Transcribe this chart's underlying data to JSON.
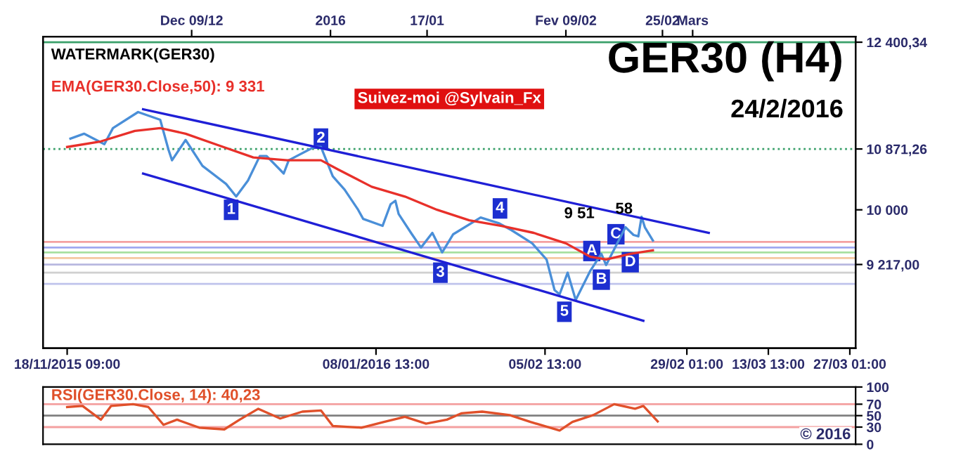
{
  "chart_data": [
    {
      "type": "line",
      "title": "GER30 (H4)",
      "subtitle": "24/2/2016",
      "xlim": [
        "2015-11-14T09:00",
        "2016-03-28T00:00"
      ],
      "ylim": [
        8020,
        12480
      ],
      "xticks": [
        {
          "value": "2015-11-18T09:00",
          "label": "18/11/2015 09:00"
        },
        {
          "value": "2016-01-08T13:00",
          "label": "08/01/2016 13:00"
        },
        {
          "value": "2016-02-05T13:00",
          "label": "05/02 13:00"
        },
        {
          "value": "2016-02-29T01:00",
          "label": "29/02 01:00"
        },
        {
          "value": "2016-03-13T13:00",
          "label": "13/03 13:00"
        },
        {
          "value": "2016-03-27T01:00",
          "label": "27/03 01:00"
        }
      ],
      "x2lim": [
        "2015-11-14T09:00",
        "2016-03-28T00:00"
      ],
      "x2ticks": [
        {
          "value": "2015-12-09",
          "label": "Dec 09/12"
        },
        {
          "value": "2016-01-01",
          "label": "2016"
        },
        {
          "value": "2016-01-17",
          "label": "17/01"
        },
        {
          "value": "2016-02-09",
          "label": "Fev 09/02"
        },
        {
          "value": "2016-02-25",
          "label": "25/02"
        },
        {
          "value": "2016-03-01",
          "label": "Mars"
        }
      ],
      "yticks": [
        {
          "value": 12400.34,
          "label": "12 400,34"
        },
        {
          "value": 10871.26,
          "label": "10 871,26"
        },
        {
          "value": 10000,
          "label": "10 000"
        },
        {
          "value": 9217,
          "label": "9 217,00"
        }
      ],
      "grid": false,
      "legend": false,
      "series": [
        {
          "color": "#4a8fd8",
          "x": [
            "2015-11-18T22:00",
            "2015-11-21T04:00",
            "2015-11-24T13:00",
            "2015-11-25T23:00",
            "2015-11-30T03:00",
            "2015-12-03T19:00",
            "2015-12-05T04:00",
            "2015-12-05T18:00",
            "2015-12-08T00:00",
            "2015-12-10T19:00",
            "2015-12-14T17:00",
            "2015-12-16T09:00",
            "2015-12-18T08:00",
            "2015-12-20T07:00",
            "2015-12-21T10:00",
            "2015-12-24T06:00",
            "2015-12-25T02:00",
            "2015-12-29T07:00",
            "2015-12-30T10:00",
            "2016-01-01T09:00",
            "2016-01-03T08:00",
            "2016-01-05T14:00",
            "2016-01-06T10:00",
            "2016-01-09T15:00",
            "2016-01-10T23:00",
            "2016-01-11T18:00",
            "2016-01-12T07:00",
            "2016-01-14T10:00",
            "2016-01-16T00:00",
            "2016-01-17T21:00",
            "2016-01-19T12:00",
            "2016-01-21T08:00",
            "2016-01-25T21:00",
            "2016-01-28T20:00",
            "2016-01-30T23:00",
            "2016-02-03T10:00",
            "2016-02-05T19:00",
            "2016-02-07T03:00",
            "2016-02-07T23:00",
            "2016-02-09T07:00",
            "2016-02-10T15:00",
            "2016-02-13T00:00",
            "2016-02-14T21:00",
            "2016-02-15T16:00",
            "2016-02-18T21:00",
            "2016-02-20T05:00",
            "2016-02-21T00:00",
            "2016-02-21T13:00",
            "2016-02-22T02:00",
            "2016-02-23T10:00"
          ],
          "values": [
            11020,
            11090,
            10940,
            11170,
            11400,
            11290,
            10860,
            10710,
            11000,
            10630,
            10370,
            10190,
            10420,
            10770,
            10770,
            10520,
            10710,
            10900,
            10900,
            10480,
            10290,
            10000,
            9870,
            9770,
            10080,
            10130,
            9940,
            9660,
            9460,
            9670,
            9390,
            9650,
            9890,
            9810,
            9710,
            9520,
            9290,
            8850,
            8790,
            9100,
            8710,
            9120,
            9370,
            9210,
            9750,
            9640,
            9620,
            9900,
            9750,
            9560
          ]
        },
        {
          "name": "EMA(GER30.Close,50): 9 331",
          "color": "#e8302a",
          "x": [
            "2015-11-18T09:00",
            "2015-11-23T23:00",
            "2015-11-29T14:00",
            "2015-12-03T19:00",
            "2015-12-08T00:00",
            "2015-12-13T14:00",
            "2015-12-19T05:00",
            "2015-12-24T19:00",
            "2015-12-30T10:00",
            "2016-01-02T05:00",
            "2016-01-07T20:00",
            "2016-01-13T08:00",
            "2016-01-18T16:00",
            "2016-01-24T00:00",
            "2016-01-29T08:00",
            "2016-02-03T16:00",
            "2016-02-09T00:00",
            "2016-02-13T00:00",
            "2016-02-15T16:00",
            "2016-02-19T16:00",
            "2016-02-23T10:00"
          ],
          "values": [
            10900,
            10980,
            11130,
            11170,
            11090,
            10920,
            10750,
            10710,
            10710,
            10580,
            10330,
            10190,
            10000,
            9850,
            9770,
            9670,
            9520,
            9330,
            9290,
            9370,
            9420
          ]
        },
        {
          "color": "#1f1fd6",
          "x": [
            "2015-11-30T23:00",
            "2016-03-03T16:00"
          ],
          "values": [
            11440,
            9670
          ]
        },
        {
          "color": "#1f1fd6",
          "x": [
            "2015-11-30T23:00",
            "2016-02-21T20:00"
          ],
          "values": [
            10520,
            8410
          ]
        }
      ],
      "ref_lines": [
        {
          "axis": "y",
          "value": 12400.34,
          "color": "#3aa06a"
        },
        {
          "axis": "y",
          "value": 10871.26,
          "color": "#3aa06a",
          "line_style": "dotted"
        },
        {
          "axis": "y",
          "value": 9540,
          "color": "#f4a0a0"
        },
        {
          "axis": "y",
          "value": 9460,
          "color": "#a0a8f0"
        },
        {
          "axis": "y",
          "value": 9390,
          "color": "#a8e0a0"
        },
        {
          "axis": "y",
          "value": 9310,
          "color": "#f4c8a0"
        },
        {
          "axis": "y",
          "value": 9217,
          "color": "#b8b8e0"
        },
        {
          "axis": "y",
          "value": 9100,
          "color": "#d0d0d0"
        },
        {
          "axis": "y",
          "value": 8940,
          "color": "#c0c4ec"
        }
      ],
      "annotations": [
        "WATERMARK(GER30)",
        "Suivez-moi @Sylvain_Fx",
        "© 2016",
        "9 51",
        "58",
        {
          "text": "1",
          "x": "2015-12-15T13:00",
          "y": 10000
        },
        {
          "text": "2",
          "x": "2015-12-30T10:00",
          "y": 11020
        },
        {
          "text": "3",
          "x": "2016-01-19T05:00",
          "y": 9100
        },
        {
          "text": "4",
          "x": "2016-01-29T02:00",
          "y": 10020
        },
        {
          "text": "5",
          "x": "2016-02-08T18:00",
          "y": 8540
        },
        {
          "text": "A",
          "x": "2016-02-13T07:00",
          "y": 9410
        },
        {
          "text": "B",
          "x": "2016-02-14T21:00",
          "y": 9000
        },
        {
          "text": "C",
          "x": "2016-02-17T07:00",
          "y": 9650
        },
        {
          "text": "D",
          "x": "2016-02-19T16:00",
          "y": 9250
        }
      ]
    },
    {
      "type": "line",
      "xlim": [
        "2015-11-14T09:00",
        "2016-03-28T00:00"
      ],
      "ylim": [
        0,
        100
      ],
      "yticks": [
        0,
        30,
        50,
        70,
        100
      ],
      "tick_labels": "y",
      "grid": false,
      "legend": false,
      "series": [
        {
          "name": "RSI(GER30.Close, 14): 40,23",
          "color": "#e0502a",
          "x": [
            "2015-11-18T09:00",
            "2015-11-20T22:00",
            "2015-11-23T23:00",
            "2015-11-25T16:00",
            "2015-11-29T07:00",
            "2015-12-01T20:00",
            "2015-12-04T08:00",
            "2015-12-06T14:00",
            "2015-12-10T06:00",
            "2015-12-14T10:00",
            "2015-12-16T23:00",
            "2015-12-20T01:00",
            "2015-12-23T16:00",
            "2015-12-27T08:00",
            "2015-12-30T10:00",
            "2016-01-01T09:00",
            "2016-01-06T03:00",
            "2016-01-09T21:00",
            "2016-01-13T08:00",
            "2016-01-16T20:00",
            "2016-01-20T07:00",
            "2016-01-22T16:00",
            "2016-01-26T03:00",
            "2016-01-30T16:00",
            "2016-02-03T03:00",
            "2016-02-07T23:00",
            "2016-02-10T02:00",
            "2016-02-13T13:00",
            "2016-02-17T00:00",
            "2016-02-20T11:00",
            "2016-02-21T20:00",
            "2016-02-24T05:00"
          ],
          "values": [
            65,
            67,
            43,
            67,
            70,
            65,
            34,
            43,
            29,
            26,
            43,
            62,
            45,
            57,
            59,
            32,
            29,
            39,
            48,
            36,
            43,
            54,
            57,
            51,
            39,
            24,
            39,
            51,
            70,
            62,
            67,
            40
          ]
        }
      ],
      "ref_lines": [
        {
          "axis": "y",
          "value": 70,
          "color": "#f4a0a0"
        },
        {
          "axis": "y",
          "value": 50,
          "color": "#808080"
        },
        {
          "axis": "y",
          "value": 30,
          "color": "#f4a0a0"
        }
      ]
    }
  ]
}
